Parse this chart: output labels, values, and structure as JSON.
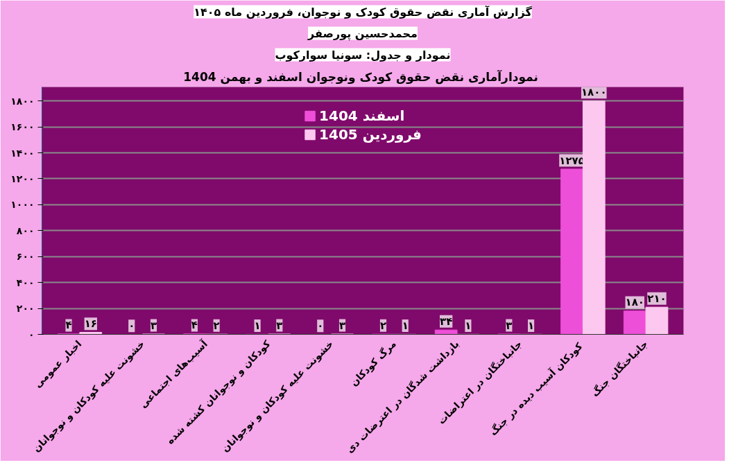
{
  "chart_data": {
    "type": "bar",
    "title": "نمودارآماری نقض حقوق کودک ونوجوان  اسفند و بهمن 1404",
    "annotations": [
      "گزارش آماری نقض حقوق کودک و نوجوان، فروردین ماه ۱۴۰۵",
      "محمدحسین پورصفر",
      "نمودار و جدول: سونیا سوارکوب"
    ],
    "categories": [
      "اخبار عمومی",
      "خشونت علیه کودکان و نوجوانان",
      "آسیب‌های اجتماعی",
      "کودکان و نوجوانان کشته شده",
      "خشونت علیه کودکان و نوجوانان",
      "مرگ کودکان",
      "بازداشت شدگان در اعترضات دی",
      "جانباختگان در اعتراضات",
      "کودکان  آسیب دیده در جنگ",
      "جانباختگان جنگ"
    ],
    "series": [
      {
        "name": "اسفند 1404",
        "color": "#ee4fd8",
        "values": [
          4,
          0,
          4,
          1,
          0,
          2,
          34,
          3,
          1275,
          180
        ],
        "value_labels": [
          "۴",
          "۰",
          "۴",
          "۱",
          "۰",
          "۲",
          "۳۴",
          "۳",
          "۱۲۷۵",
          "۱۸۰"
        ]
      },
      {
        "name": "فروردین 1405",
        "color": "#fcc8f0",
        "values": [
          16,
          3,
          2,
          3,
          3,
          1,
          1,
          1,
          1800,
          210
        ],
        "value_labels": [
          "۱۶",
          "۳",
          "۲",
          "۳",
          "۳",
          "۱",
          "۱",
          "۱",
          "۱۸۰۰",
          "۲۱۰"
        ]
      }
    ],
    "ylim": [
      0,
      1800
    ],
    "yticks": [
      {
        "value": 0,
        "label": "۰"
      },
      {
        "value": 200,
        "label": "۲۰۰"
      },
      {
        "value": 400,
        "label": "۴۰۰"
      },
      {
        "value": 600,
        "label": "۶۰۰"
      },
      {
        "value": 800,
        "label": "۸۰۰"
      },
      {
        "value": 1000,
        "label": "۱۰۰۰"
      },
      {
        "value": 1200,
        "label": "۱۲۰۰"
      },
      {
        "value": 1400,
        "label": "۱۴۰۰"
      },
      {
        "value": 1600,
        "label": "۱۶۰۰"
      },
      {
        "value": 1800,
        "label": "۱۸۰۰"
      }
    ],
    "grid": "y",
    "legend": "top"
  }
}
